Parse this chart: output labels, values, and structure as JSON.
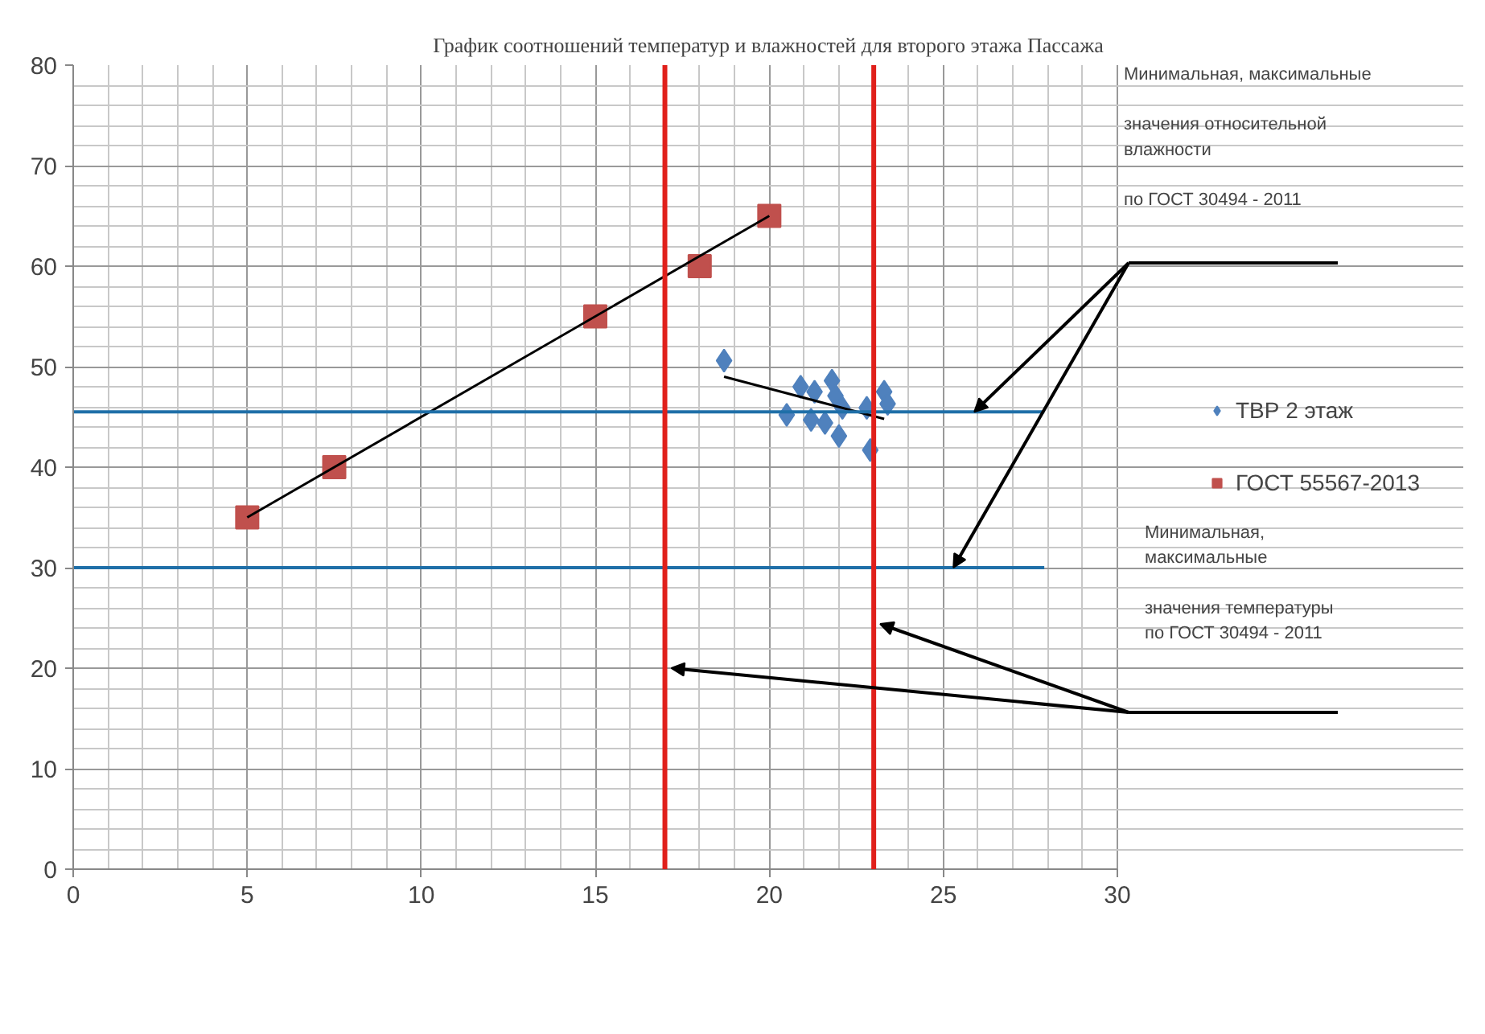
{
  "chart_data": {
    "type": "scatter",
    "title": "График соотношений температур и влажностей для второго этажа Пассажа",
    "xlim": [
      0,
      30
    ],
    "ylim": [
      0,
      80
    ],
    "xticks": [
      0,
      5,
      10,
      15,
      20,
      25,
      30
    ],
    "yticks": [
      0,
      10,
      20,
      30,
      40,
      50,
      60,
      70,
      80
    ],
    "grid": true,
    "legend": "right",
    "series": [
      {
        "name": "ТВР 2 этаж",
        "color": "#4f81bd",
        "marker": "diamond",
        "x": [
          18.7,
          20.5,
          20.9,
          21.3,
          21.2,
          21.8,
          21.9,
          22.1,
          22.0,
          21.6,
          22.8,
          23.3,
          23.4,
          22.9
        ],
        "values": [
          50.6,
          45.2,
          48.0,
          47.5,
          44.7,
          48.6,
          47.1,
          45.9,
          43.1,
          44.4,
          45.9,
          47.5,
          46.3,
          41.7
        ]
      },
      {
        "name": "ГОСТ 55567-2013",
        "color": "#c0504d",
        "marker": "square",
        "x": [
          5,
          7.5,
          15,
          18,
          20
        ],
        "values": [
          35,
          40,
          55,
          60,
          65
        ]
      },
      {
        "type": "line",
        "color": "#000000",
        "marker": "none",
        "x": [
          18.7,
          23.3
        ],
        "values": [
          49.0,
          44.8
        ]
      },
      {
        "type": "line",
        "color": "#000000",
        "marker": "none",
        "x": [
          5,
          20
        ],
        "values": [
          35,
          65
        ]
      }
    ],
    "ref_lines": [
      {
        "axis": "y",
        "value": 45.5,
        "color": "#1f6fa8"
      },
      {
        "axis": "y",
        "value": 30,
        "color": "#1f6fa8"
      },
      {
        "axis": "x",
        "value": 17,
        "color": "#e0201b"
      },
      {
        "axis": "x",
        "value": 23,
        "color": "#e0201b"
      }
    ],
    "annotations": [
      "Минимальная, максимальные\n\nзначения относительной\nвлажности\n\nпо ГОСТ 30494 - 2011",
      "Минимальная,\nмаксимальные\n\nзначения температуры\nпо    ГОСТ 30494 - 2011"
    ]
  }
}
